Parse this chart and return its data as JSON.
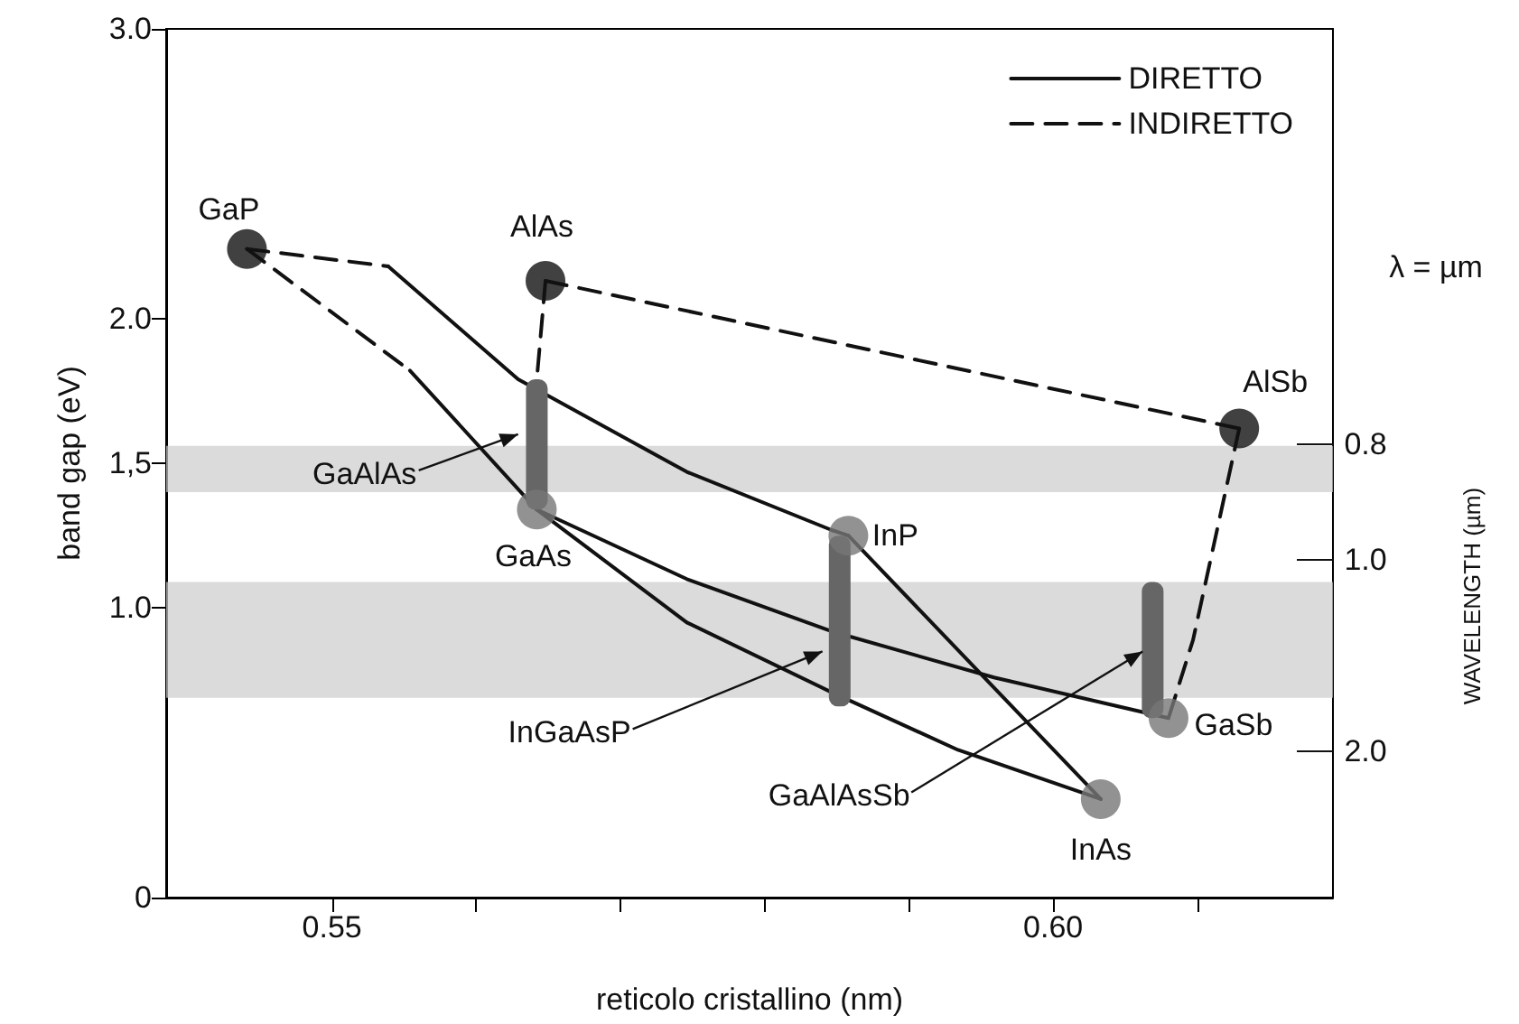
{
  "chart_data": {
    "type": "line",
    "xlabel": "reticolo cristallino (nm)",
    "ylabel": "band gap (eV)",
    "xlim": [
      0.5385,
      0.6194
    ],
    "xticks": [
      0.55,
      {
        "value": 0.56,
        "label": null
      },
      {
        "value": 0.57,
        "label": null
      },
      {
        "value": 0.58,
        "label": null
      },
      {
        "value": 0.59,
        "label": null
      },
      {
        "value": 0.6,
        "label": "0.60"
      },
      {
        "value": 0.61,
        "label": null
      }
    ],
    "ylim": [
      0,
      3
    ],
    "yticks": [
      0,
      {
        "value": 1,
        "label": "1.0"
      },
      {
        "value": 1.5,
        "label": "1,5"
      },
      {
        "value": 2,
        "label": "2.0"
      },
      {
        "value": 3,
        "label": "3.0"
      }
    ],
    "grid": false,
    "legend": "top right",
    "series": [
      {
        "name": "DIRETTO",
        "line_style": "solid",
        "color": "#111111",
        "x": [
          0.5539,
          0.5629,
          0.5746,
          0.5846,
          0.5858
        ],
        "values": [
          2.18,
          1.79,
          1.47,
          1.27,
          1.25
        ]
      },
      {
        "name": "INDIRETTO",
        "line_style": "dashed",
        "color": "#111111",
        "x": [
          0.5441,
          0.5539
        ],
        "values": [
          2.24,
          2.18
        ]
      },
      {
        "type": "line",
        "line_style": "dashed",
        "color": "#111111",
        "x": [
          0.5441,
          0.5554
        ],
        "values": [
          2.24,
          1.82
        ]
      },
      {
        "type": "line",
        "line_style": "solid",
        "color": "#111111",
        "x": [
          0.5554,
          0.5642
        ],
        "values": [
          1.82,
          1.34
        ]
      },
      {
        "type": "line",
        "line_style": "dashed",
        "color": "#111111",
        "x": [
          0.5648,
          0.5642
        ],
        "values": [
          2.13,
          1.79
        ]
      },
      {
        "type": "line",
        "line_style": "dashed",
        "color": "#111111",
        "x": [
          0.5648,
          0.6129
        ],
        "values": [
          2.13,
          1.62
        ]
      },
      {
        "type": "line",
        "line_style": "dashed",
        "color": "#111111",
        "x": [
          0.6129,
          0.6097,
          0.608
        ],
        "values": [
          1.62,
          0.89,
          0.62
        ]
      },
      {
        "type": "line",
        "line_style": "solid",
        "color": "#111111",
        "x": [
          0.5642,
          0.5746,
          0.5846,
          0.5959,
          0.608
        ],
        "values": [
          1.34,
          1.1,
          0.92,
          0.76,
          0.62
        ]
      },
      {
        "type": "line",
        "line_style": "solid",
        "color": "#111111",
        "x": [
          0.5642,
          0.5746,
          0.5846,
          0.5934,
          0.6033
        ],
        "values": [
          1.34,
          0.95,
          0.71,
          0.51,
          0.34
        ]
      },
      {
        "type": "line",
        "line_style": "solid",
        "color": "#111111",
        "x": [
          0.5858,
          0.6033
        ],
        "values": [
          1.25,
          0.34
        ]
      },
      {
        "type": "bar",
        "color": "#666666",
        "x": [
          0.5642,
          0.5852,
          0.6069
        ],
        "base": [
          1.34,
          0.66,
          0.62
        ],
        "values": [
          0.45,
          0.59,
          0.47
        ]
      },
      {
        "type": "scatter",
        "marker": "circle",
        "color": "#111111",
        "x": [
          0.5441,
          0.5648,
          0.6129
        ],
        "values": [
          2.24,
          2.13,
          1.62
        ]
      },
      {
        "type": "scatter",
        "marker": "circle",
        "color": "#777777",
        "x": [
          0.5642,
          0.5858,
          0.6033,
          0.608
        ],
        "values": [
          1.34,
          1.25,
          0.34,
          0.62
        ]
      }
    ],
    "bands": [
      {
        "axis": "y",
        "from": 1.4,
        "to": 1.56,
        "color": "#cccccc"
      },
      {
        "axis": "y",
        "from": 0.69,
        "to": 1.09,
        "color": "#cccccc"
      }
    ],
    "annotations": [
      {
        "text": "GaP",
        "x": 0.5441,
        "y": 2.24
      },
      {
        "text": "AlAs",
        "x": 0.5648,
        "y": 2.13
      },
      {
        "text": "AlSb",
        "x": 0.6129,
        "y": 1.62
      },
      {
        "text": "GaAs",
        "x": 0.5642,
        "y": 1.34
      },
      {
        "text": "InP",
        "x": 0.5858,
        "y": 1.25
      },
      {
        "text": "InAs",
        "x": 0.6033,
        "y": 0.34
      },
      {
        "text": "GaSb",
        "x": 0.608,
        "y": 0.62
      },
      {
        "text": "GaAlAs",
        "x": 0.5629,
        "y": 1.6
      },
      {
        "text": "InGaAsP",
        "x": 0.584,
        "y": 0.85
      },
      {
        "text": "GaAlAsSb",
        "x": 0.6062,
        "y": 0.85
      },
      "λ = µm",
      "0.8",
      "1.0",
      "2.0",
      "WAVELENGTH (µm)"
    ]
  }
}
